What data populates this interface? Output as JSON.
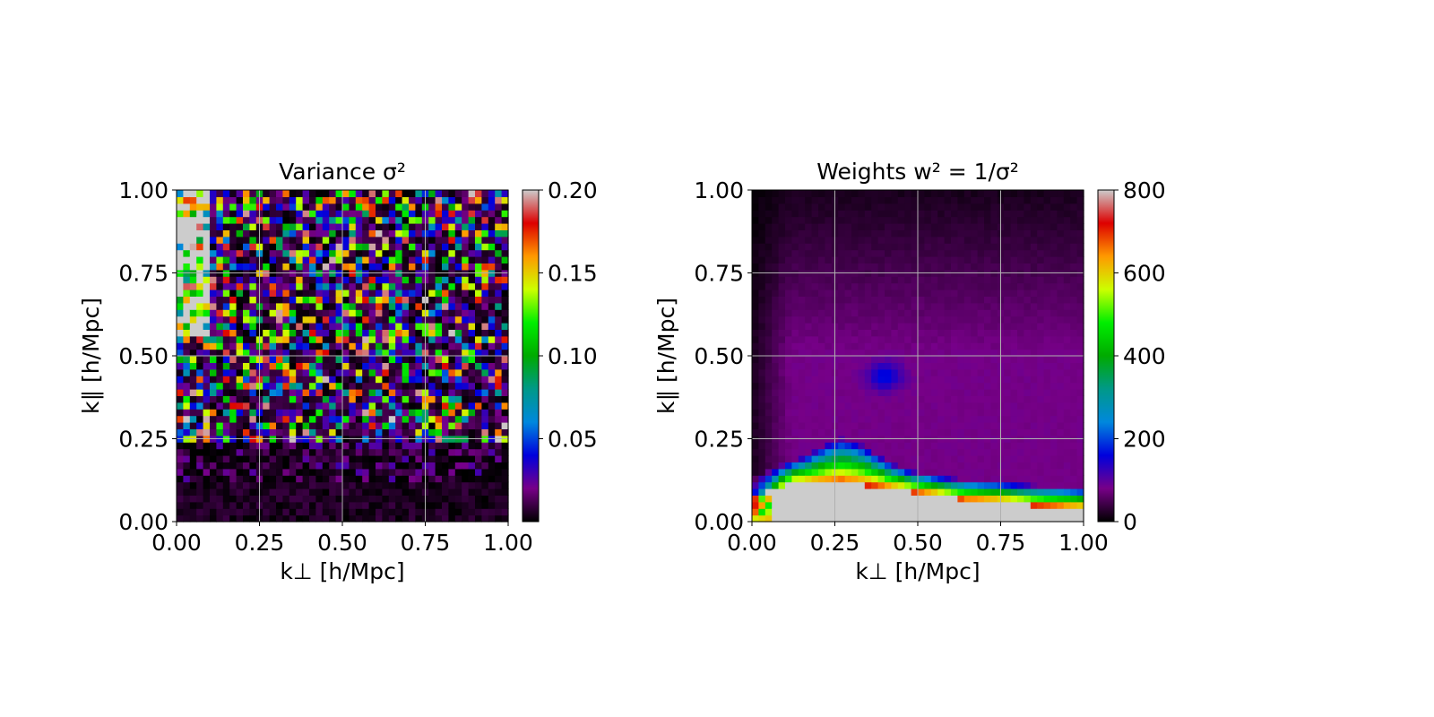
{
  "chart_data": [
    {
      "type": "heatmap",
      "title": "Variance σ²",
      "xlabel": "k⊥ [h/Mpc]",
      "ylabel": "k∥ [h/Mpc]",
      "xlim": [
        0.0,
        1.0
      ],
      "ylim": [
        0.0,
        1.0
      ],
      "xticks": [
        "0.00",
        "0.25",
        "0.50",
        "0.75",
        "1.00"
      ],
      "yticks": [
        "0.00",
        "0.25",
        "0.50",
        "0.75",
        "1.00"
      ],
      "grid": true,
      "grid_bins": [
        50,
        50
      ],
      "colorbar": {
        "min": 0.0,
        "max": 0.2,
        "ticks": [
          "0.05",
          "0.10",
          "0.15",
          "0.20"
        ],
        "tick_values": [
          0.05,
          0.1,
          0.15,
          0.2
        ],
        "colormap": "nipy_spectral"
      },
      "field_description": "noisy variance; near 0 for k∥ below 0.25, scattered values up to 0.2 at higher k∥, saturated near k⊥ 0.0–0.1 for k∥ above 0.5"
    },
    {
      "type": "heatmap",
      "title": "Weights w² = 1/σ²",
      "xlabel": "k⊥ [h/Mpc]",
      "ylabel": "k∥ [h/Mpc]",
      "xlim": [
        0.0,
        1.0
      ],
      "ylim": [
        0.0,
        1.0
      ],
      "xticks": [
        "0.00",
        "0.25",
        "0.50",
        "0.75",
        "1.00"
      ],
      "yticks": [
        "0.00",
        "0.25",
        "0.50",
        "0.75",
        "1.00"
      ],
      "grid": true,
      "grid_bins": [
        50,
        50
      ],
      "colorbar": {
        "min": 0,
        "max": 800,
        "ticks": [
          "0",
          "200",
          "400",
          "600",
          "800"
        ],
        "tick_values": [
          0,
          200,
          400,
          600,
          800
        ],
        "colormap": "nipy_spectral"
      },
      "field_description": "saturated (≥800) below a boundary k∥ ≈ 0.10–0.15, steep gradient through 600–100 above it, ~80 plateau up to k∥ ≈ 0.5, decreasing toward 0 at high k∥ and low k⊥"
    }
  ]
}
